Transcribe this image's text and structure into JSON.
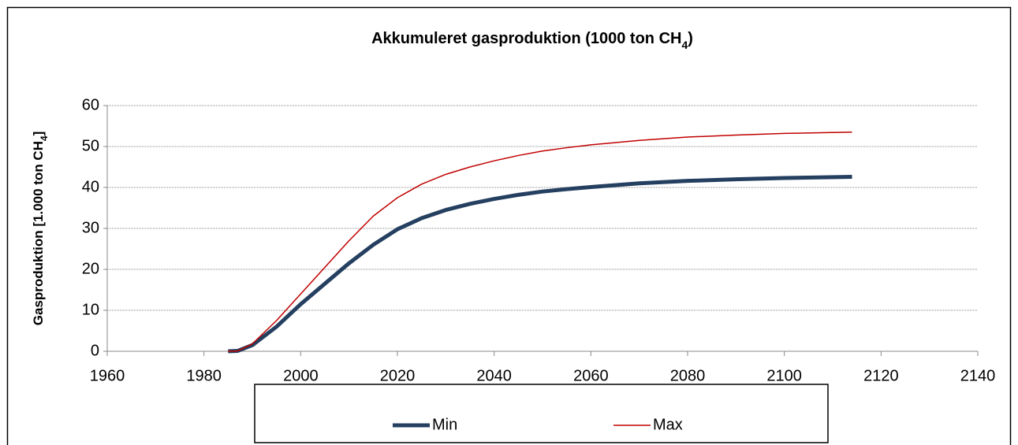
{
  "chart_data": {
    "type": "line",
    "title": "Akkumuleret gasproduktion (1000 ton CH4)",
    "y_label": "Gasproduktion [1.000 ton CH4]",
    "x": [
      1985,
      1987,
      1990,
      1995,
      2000,
      2005,
      2010,
      2015,
      2020,
      2025,
      2030,
      2035,
      2040,
      2045,
      2050,
      2055,
      2060,
      2070,
      2080,
      2090,
      2100,
      2114
    ],
    "series": [
      {
        "name": "Min",
        "color": "#243f60",
        "values": [
          0,
          0.1,
          1.5,
          6,
          11.5,
          16.5,
          21.5,
          26,
          29.8,
          32.5,
          34.5,
          36,
          37.2,
          38.2,
          39,
          39.6,
          40.1,
          41,
          41.6,
          42,
          42.3,
          42.6
        ]
      },
      {
        "name": "Max",
        "color": "#c00000",
        "values": [
          0,
          0.1,
          1.8,
          7.5,
          14,
          20.5,
          27,
          33,
          37.5,
          40.8,
          43.2,
          45,
          46.5,
          47.8,
          48.9,
          49.7,
          50.4,
          51.5,
          52.3,
          52.8,
          53.2,
          53.5
        ]
      }
    ],
    "xlim": [
      1960,
      2140
    ],
    "xticks": [
      1960,
      1980,
      2000,
      2020,
      2040,
      2060,
      2080,
      2100,
      2120,
      2140
    ],
    "ylim": [
      0,
      60
    ],
    "yticks": [
      0,
      10,
      20,
      30,
      40,
      50,
      60
    ],
    "grid": true,
    "legend": "bottom"
  }
}
